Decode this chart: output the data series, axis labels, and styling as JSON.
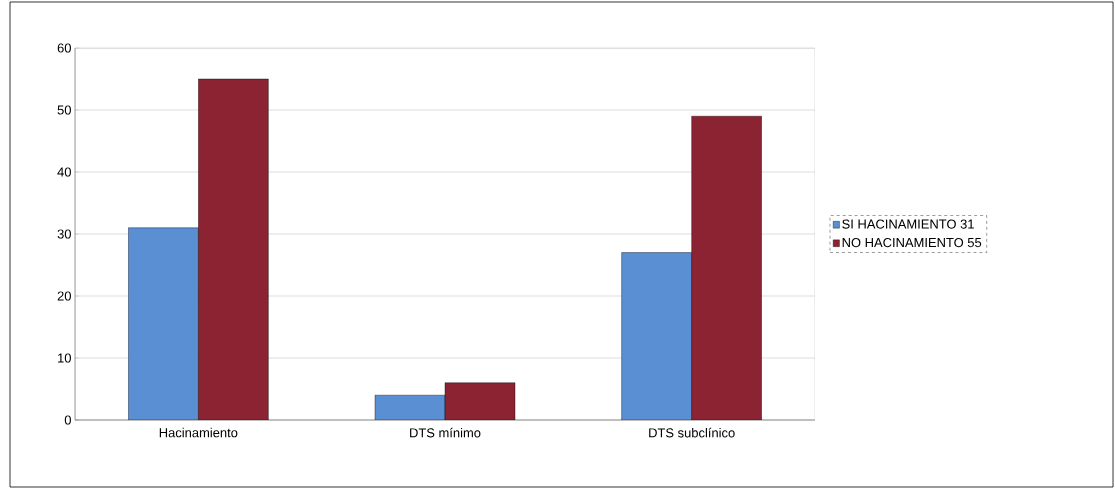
{
  "chart_data": {
    "type": "bar",
    "categories": [
      "Hacinamiento",
      "DTS mínimo",
      "DTS subclínico"
    ],
    "series": [
      {
        "name": "SI HACINAMIENTO 31",
        "color": "#5b8fd4",
        "values": [
          31,
          4,
          27
        ]
      },
      {
        "name": "NO HACINAMIENTO 55",
        "color": "#8c2333",
        "values": [
          55,
          6,
          49
        ]
      }
    ],
    "ylim": [
      0,
      60
    ],
    "yticks": [
      0,
      10,
      20,
      30,
      40,
      50,
      60
    ],
    "grid": "y",
    "legend": "right"
  }
}
